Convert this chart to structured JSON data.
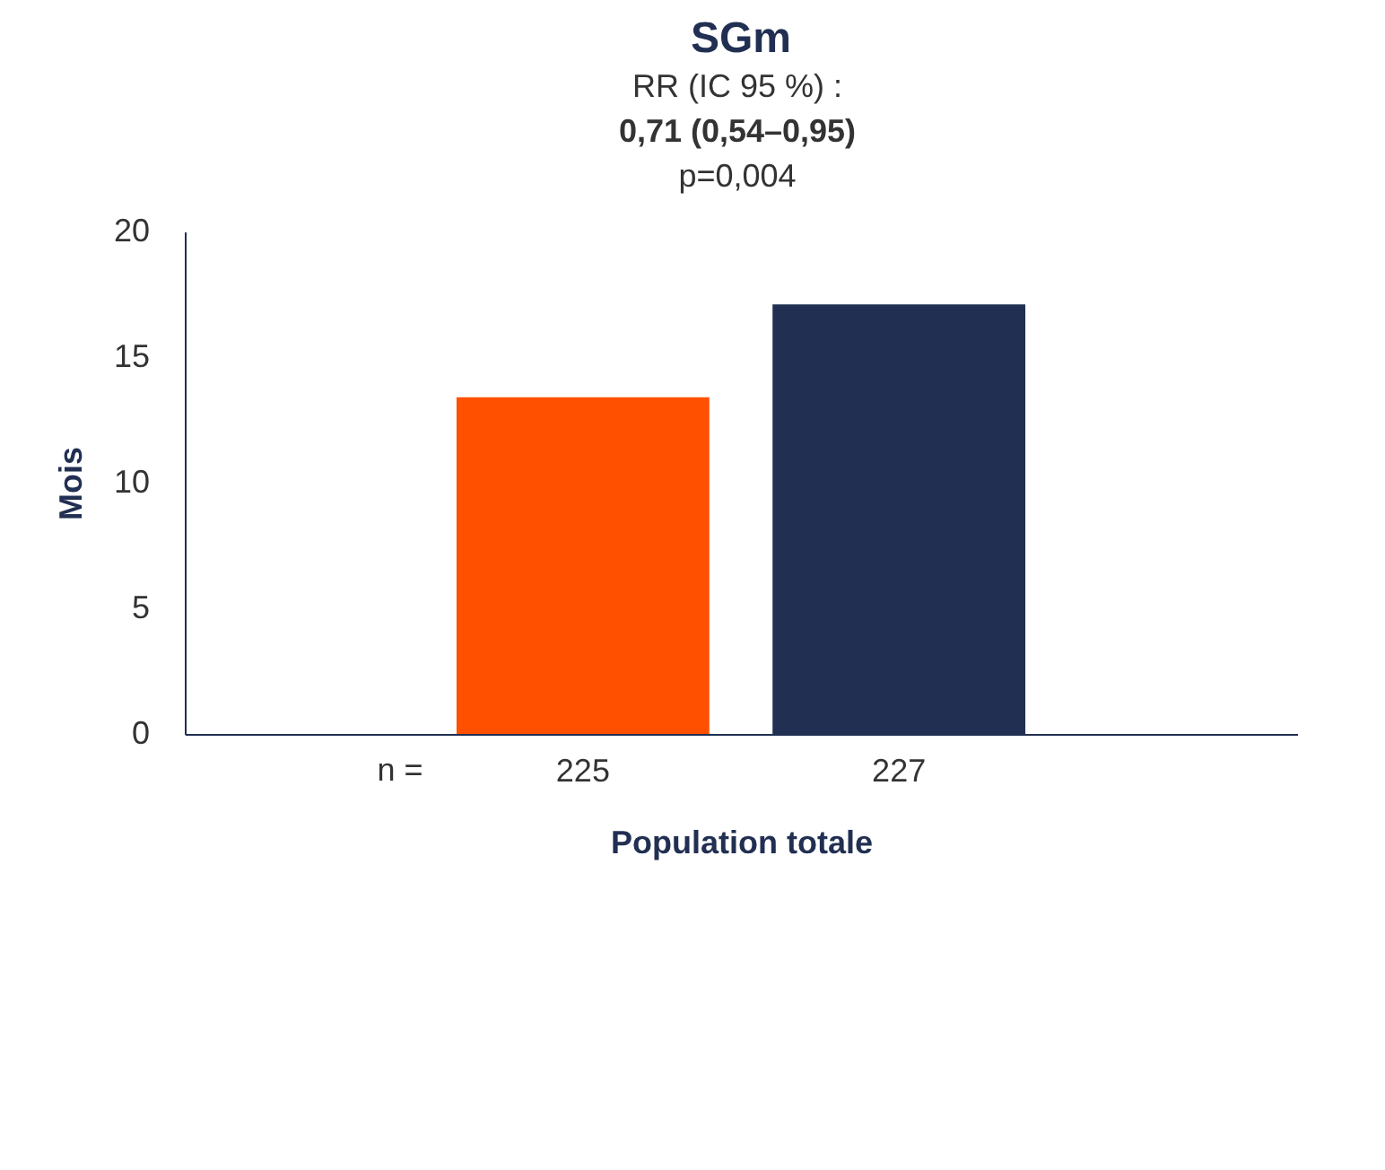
{
  "chart_data": {
    "type": "bar",
    "title": "SGm",
    "xlabel": "Population totale",
    "ylabel": "Mois",
    "categories": [
      "225",
      "227"
    ],
    "values": [
      13.4,
      17.1
    ],
    "colors": [
      "#ff5000",
      "#212f52"
    ],
    "ylim": [
      0,
      20
    ],
    "yticks": [
      0,
      5,
      10,
      15,
      20
    ],
    "grid": false,
    "annotations": [
      "RR (IC 95 %) :",
      "0,71 (0,54–0,95)",
      "p=0,004",
      "n ="
    ]
  }
}
